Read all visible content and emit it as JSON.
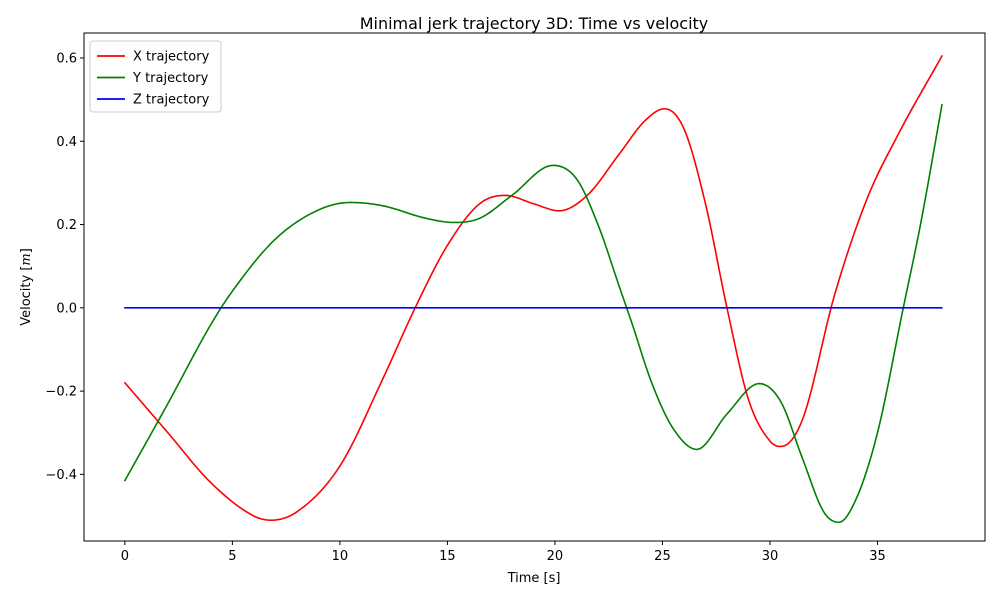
{
  "chart_data": {
    "type": "line",
    "title": "Minimal jerk trajectory 3D: Time vs velocity",
    "xlabel": "Time [s]",
    "ylabel": "Velocity [$m$]",
    "ylabel_parts": {
      "prefix": "Velocity [",
      "unit": "m",
      "suffix": "]"
    },
    "xlim": [
      -1.9,
      40.0
    ],
    "ylim": [
      -0.56,
      0.66
    ],
    "xticks": [
      0,
      5,
      10,
      15,
      20,
      25,
      30,
      35
    ],
    "yticks": [
      -0.4,
      -0.2,
      0.0,
      0.2,
      0.4,
      0.6
    ],
    "xtick_labels": [
      "0",
      "5",
      "10",
      "15",
      "20",
      "25",
      "30",
      "35"
    ],
    "ytick_labels": [
      "−0.4",
      "−0.2",
      "0.0",
      "0.2",
      "0.4",
      "0.6"
    ],
    "grid": false,
    "legend_position": "top-left",
    "series": [
      {
        "name": "X trajectory",
        "color": "#ff0000",
        "x": [
          0,
          2,
          4,
          6,
          6.8,
          8,
          10,
          12,
          13.5,
          15,
          16.5,
          17.7,
          19,
          20.2,
          21.5,
          23,
          24.2,
          25.1,
          26,
          27,
          28,
          29,
          30,
          30.5,
          31.5,
          33,
          34.5,
          36,
          38
        ],
        "y": [
          -0.18,
          -0.3,
          -0.42,
          -0.5,
          -0.51,
          -0.49,
          -0.38,
          -0.17,
          0.0,
          0.15,
          0.25,
          0.27,
          0.25,
          0.233,
          0.27,
          0.37,
          0.45,
          0.478,
          0.43,
          0.25,
          0.0,
          -0.22,
          -0.32,
          -0.333,
          -0.27,
          0.03,
          0.26,
          0.42,
          0.605
        ]
      },
      {
        "name": "Y trajectory",
        "color": "#008000",
        "x": [
          0,
          2,
          4,
          5,
          7,
          9,
          10.5,
          12,
          14,
          15.3,
          16.5,
          18,
          19.9,
          21,
          22,
          23,
          23.6,
          24.5,
          25.5,
          26.6,
          28,
          29.5,
          30.5,
          31.5,
          32.5,
          33.2,
          34,
          35,
          36.2,
          37,
          38
        ],
        "y": [
          -0.415,
          -0.23,
          -0.04,
          0.04,
          0.165,
          0.235,
          0.253,
          0.245,
          0.215,
          0.205,
          0.215,
          0.27,
          0.342,
          0.31,
          0.2,
          0.05,
          -0.04,
          -0.18,
          -0.29,
          -0.34,
          -0.255,
          -0.182,
          -0.225,
          -0.36,
          -0.49,
          -0.515,
          -0.46,
          -0.3,
          0.0,
          0.2,
          0.488
        ]
      },
      {
        "name": "Z trajectory",
        "color": "#0000ff",
        "x": [
          0,
          38
        ],
        "y": [
          0.0,
          0.0
        ]
      }
    ]
  }
}
